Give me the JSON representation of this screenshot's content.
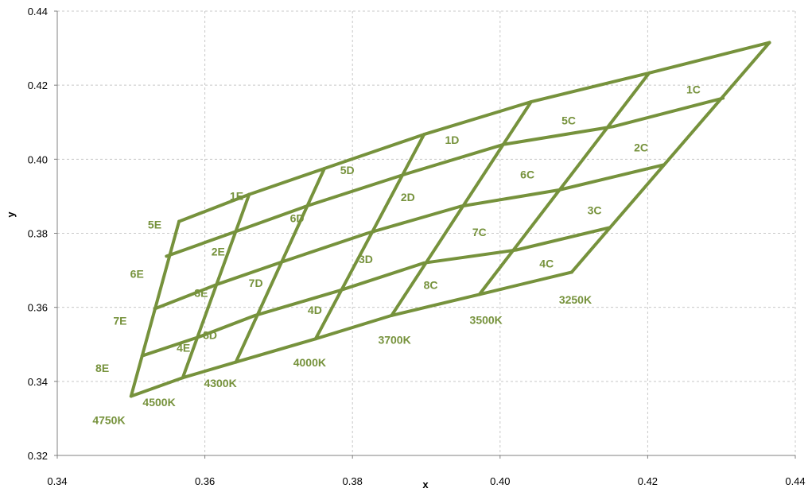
{
  "chart_data": {
    "type": "line",
    "title": "",
    "xlabel": "x",
    "ylabel": "y",
    "xlim": [
      0.34,
      0.44
    ],
    "ylim": [
      0.32,
      0.44
    ],
    "x_ticks": [
      "0.34",
      "0.36",
      "0.38",
      "0.40",
      "0.42",
      "0.44"
    ],
    "y_ticks": [
      "0.32",
      "0.34",
      "0.36",
      "0.38",
      "0.40",
      "0.42",
      "0.44"
    ],
    "grid": true,
    "line_color": "#76923c",
    "cct_boundaries": [
      {
        "label": "4750K",
        "points": [
          [
            0.35,
            0.336
          ],
          [
            0.3565,
            0.3832
          ]
        ]
      },
      {
        "label": "4500K",
        "points": [
          [
            0.357,
            0.341
          ],
          [
            0.366,
            0.3905
          ]
        ]
      },
      {
        "label": "4300K",
        "points": [
          [
            0.3642,
            0.3452
          ],
          [
            0.3762,
            0.3975
          ]
        ]
      },
      {
        "label": "4000K",
        "points": [
          [
            0.375,
            0.3515
          ],
          [
            0.3897,
            0.4067
          ]
        ]
      },
      {
        "label": "3700K",
        "points": [
          [
            0.3853,
            0.3578
          ],
          [
            0.4042,
            0.4155
          ]
        ]
      },
      {
        "label": "3500K",
        "points": [
          [
            0.3972,
            0.3635
          ],
          [
            0.4202,
            0.4233
          ]
        ]
      },
      {
        "label": "3250K",
        "points": [
          [
            0.4097,
            0.3695
          ],
          [
            0.4365,
            0.4315
          ]
        ]
      }
    ],
    "cross_lines": [
      {
        "points": [
          [
            0.3565,
            0.3832
          ],
          [
            0.366,
            0.3905
          ],
          [
            0.3762,
            0.3975
          ],
          [
            0.3897,
            0.4067
          ],
          [
            0.4042,
            0.4155
          ],
          [
            0.4202,
            0.4233
          ],
          [
            0.4365,
            0.4315
          ]
        ]
      },
      {
        "points": [
          [
            0.3548,
            0.3738
          ],
          [
            0.3642,
            0.3805
          ],
          [
            0.374,
            0.3875
          ],
          [
            0.3872,
            0.396
          ],
          [
            0.4005,
            0.404
          ],
          [
            0.4153,
            0.4088
          ],
          [
            0.4302,
            0.4165
          ]
        ]
      },
      {
        "points": [
          [
            0.3532,
            0.3596
          ],
          [
            0.3618,
            0.3663
          ],
          [
            0.3705,
            0.3723
          ],
          [
            0.382,
            0.38
          ],
          [
            0.3947,
            0.3873
          ],
          [
            0.408,
            0.3917
          ],
          [
            0.4222,
            0.3985
          ]
        ]
      },
      {
        "points": [
          [
            0.3515,
            0.3469
          ],
          [
            0.3592,
            0.352
          ],
          [
            0.3668,
            0.3578
          ],
          [
            0.3782,
            0.3645
          ],
          [
            0.3897,
            0.372
          ],
          [
            0.4022,
            0.3755
          ],
          [
            0.4148,
            0.3815
          ]
        ]
      },
      {
        "points": [
          [
            0.35,
            0.336
          ],
          [
            0.357,
            0.341
          ],
          [
            0.3642,
            0.3452
          ],
          [
            0.375,
            0.3515
          ],
          [
            0.3853,
            0.3578
          ],
          [
            0.3972,
            0.3635
          ],
          [
            0.4097,
            0.3695
          ]
        ]
      }
    ],
    "bin_labels": [
      {
        "label": "1C",
        "x": 0.4262,
        "y": 0.4178
      },
      {
        "label": "5C",
        "x": 0.4093,
        "y": 0.4094
      },
      {
        "label": "2C",
        "x": 0.4191,
        "y": 0.4021
      },
      {
        "label": "6C",
        "x": 0.4037,
        "y": 0.3948
      },
      {
        "label": "3C",
        "x": 0.4128,
        "y": 0.3851
      },
      {
        "label": "7C",
        "x": 0.3972,
        "y": 0.3793
      },
      {
        "label": "4C",
        "x": 0.4063,
        "y": 0.3708
      },
      {
        "label": "8C",
        "x": 0.3906,
        "y": 0.365
      },
      {
        "label": "1D",
        "x": 0.3935,
        "y": 0.4041
      },
      {
        "label": "5D",
        "x": 0.3793,
        "y": 0.396
      },
      {
        "label": "2D",
        "x": 0.3875,
        "y": 0.3887
      },
      {
        "label": "6D",
        "x": 0.3725,
        "y": 0.383
      },
      {
        "label": "3D",
        "x": 0.3818,
        "y": 0.3719
      },
      {
        "label": "7D",
        "x": 0.3669,
        "y": 0.3655
      },
      {
        "label": "4D",
        "x": 0.3749,
        "y": 0.3582
      },
      {
        "label": "8D",
        "x": 0.3607,
        "y": 0.3515
      },
      {
        "label": "1E",
        "x": 0.3643,
        "y": 0.389
      },
      {
        "label": "5E",
        "x": 0.3532,
        "y": 0.3813
      },
      {
        "label": "2E",
        "x": 0.3618,
        "y": 0.374
      },
      {
        "label": "6E",
        "x": 0.3508,
        "y": 0.368
      },
      {
        "label": "3E",
        "x": 0.3595,
        "y": 0.3628
      },
      {
        "label": "7E",
        "x": 0.3485,
        "y": 0.3553
      },
      {
        "label": "4E",
        "x": 0.3571,
        "y": 0.348
      },
      {
        "label": "8E",
        "x": 0.3461,
        "y": 0.3425
      }
    ],
    "cct_labels": [
      {
        "label": "4750K",
        "x": 0.347,
        "y": 0.3285
      },
      {
        "label": "4500K",
        "x": 0.3538,
        "y": 0.3333
      },
      {
        "label": "4300K",
        "x": 0.3621,
        "y": 0.3385
      },
      {
        "label": "4000K",
        "x": 0.3742,
        "y": 0.344
      },
      {
        "label": "3700K",
        "x": 0.3857,
        "y": 0.3502
      },
      {
        "label": "3500K",
        "x": 0.3981,
        "y": 0.3555
      },
      {
        "label": "3250K",
        "x": 0.4102,
        "y": 0.361
      }
    ]
  }
}
